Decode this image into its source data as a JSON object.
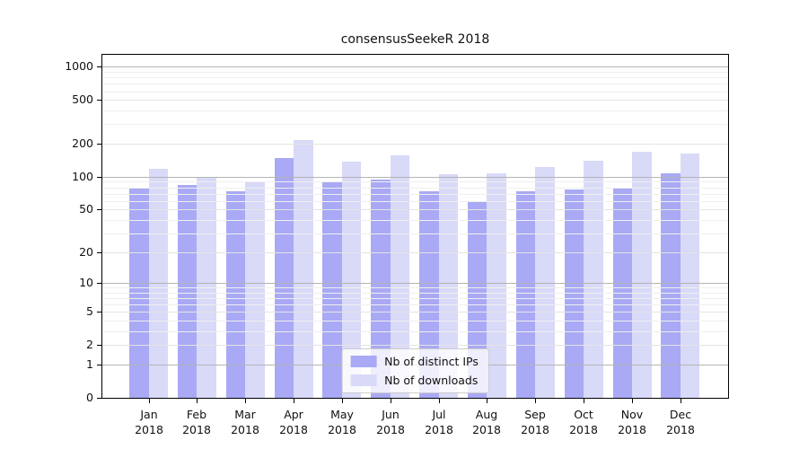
{
  "title": "consensusSeekeR 2018",
  "chart_data": {
    "type": "bar",
    "title": "consensusSeekeR 2018",
    "categories": [
      "Jan",
      "Feb",
      "Mar",
      "Apr",
      "May",
      "Jun",
      "Jul",
      "Aug",
      "Sep",
      "Oct",
      "Nov",
      "Dec"
    ],
    "x_tick_second_line": "2018",
    "series": [
      {
        "name": "Nb of distinct IPs",
        "color": "#a9a9f5",
        "values": [
          78,
          84,
          73,
          148,
          90,
          94,
          73,
          60,
          74,
          77,
          79,
          107
        ]
      },
      {
        "name": "Nb of downloads",
        "color": "#d9d9f8",
        "values": [
          117,
          100,
          91,
          215,
          138,
          158,
          105,
          107,
          122,
          140,
          170,
          162
        ]
      }
    ],
    "yscale": "log1p",
    "yticks": [
      0,
      1,
      2,
      5,
      10,
      20,
      50,
      100,
      200,
      500,
      1000
    ],
    "minor_gridlines": [
      3,
      4,
      6,
      7,
      8,
      9,
      30,
      40,
      60,
      70,
      80,
      90,
      300,
      400,
      600,
      700,
      800,
      900
    ],
    "ylim": [
      0,
      1285
    ],
    "grid": "on",
    "legend_position": "lower center",
    "colors": {
      "decade_gridline": "#b4b4b4",
      "major_gridline": "#e4e4e4",
      "minor_gridline": "#efefef",
      "axis": "#000000"
    }
  }
}
